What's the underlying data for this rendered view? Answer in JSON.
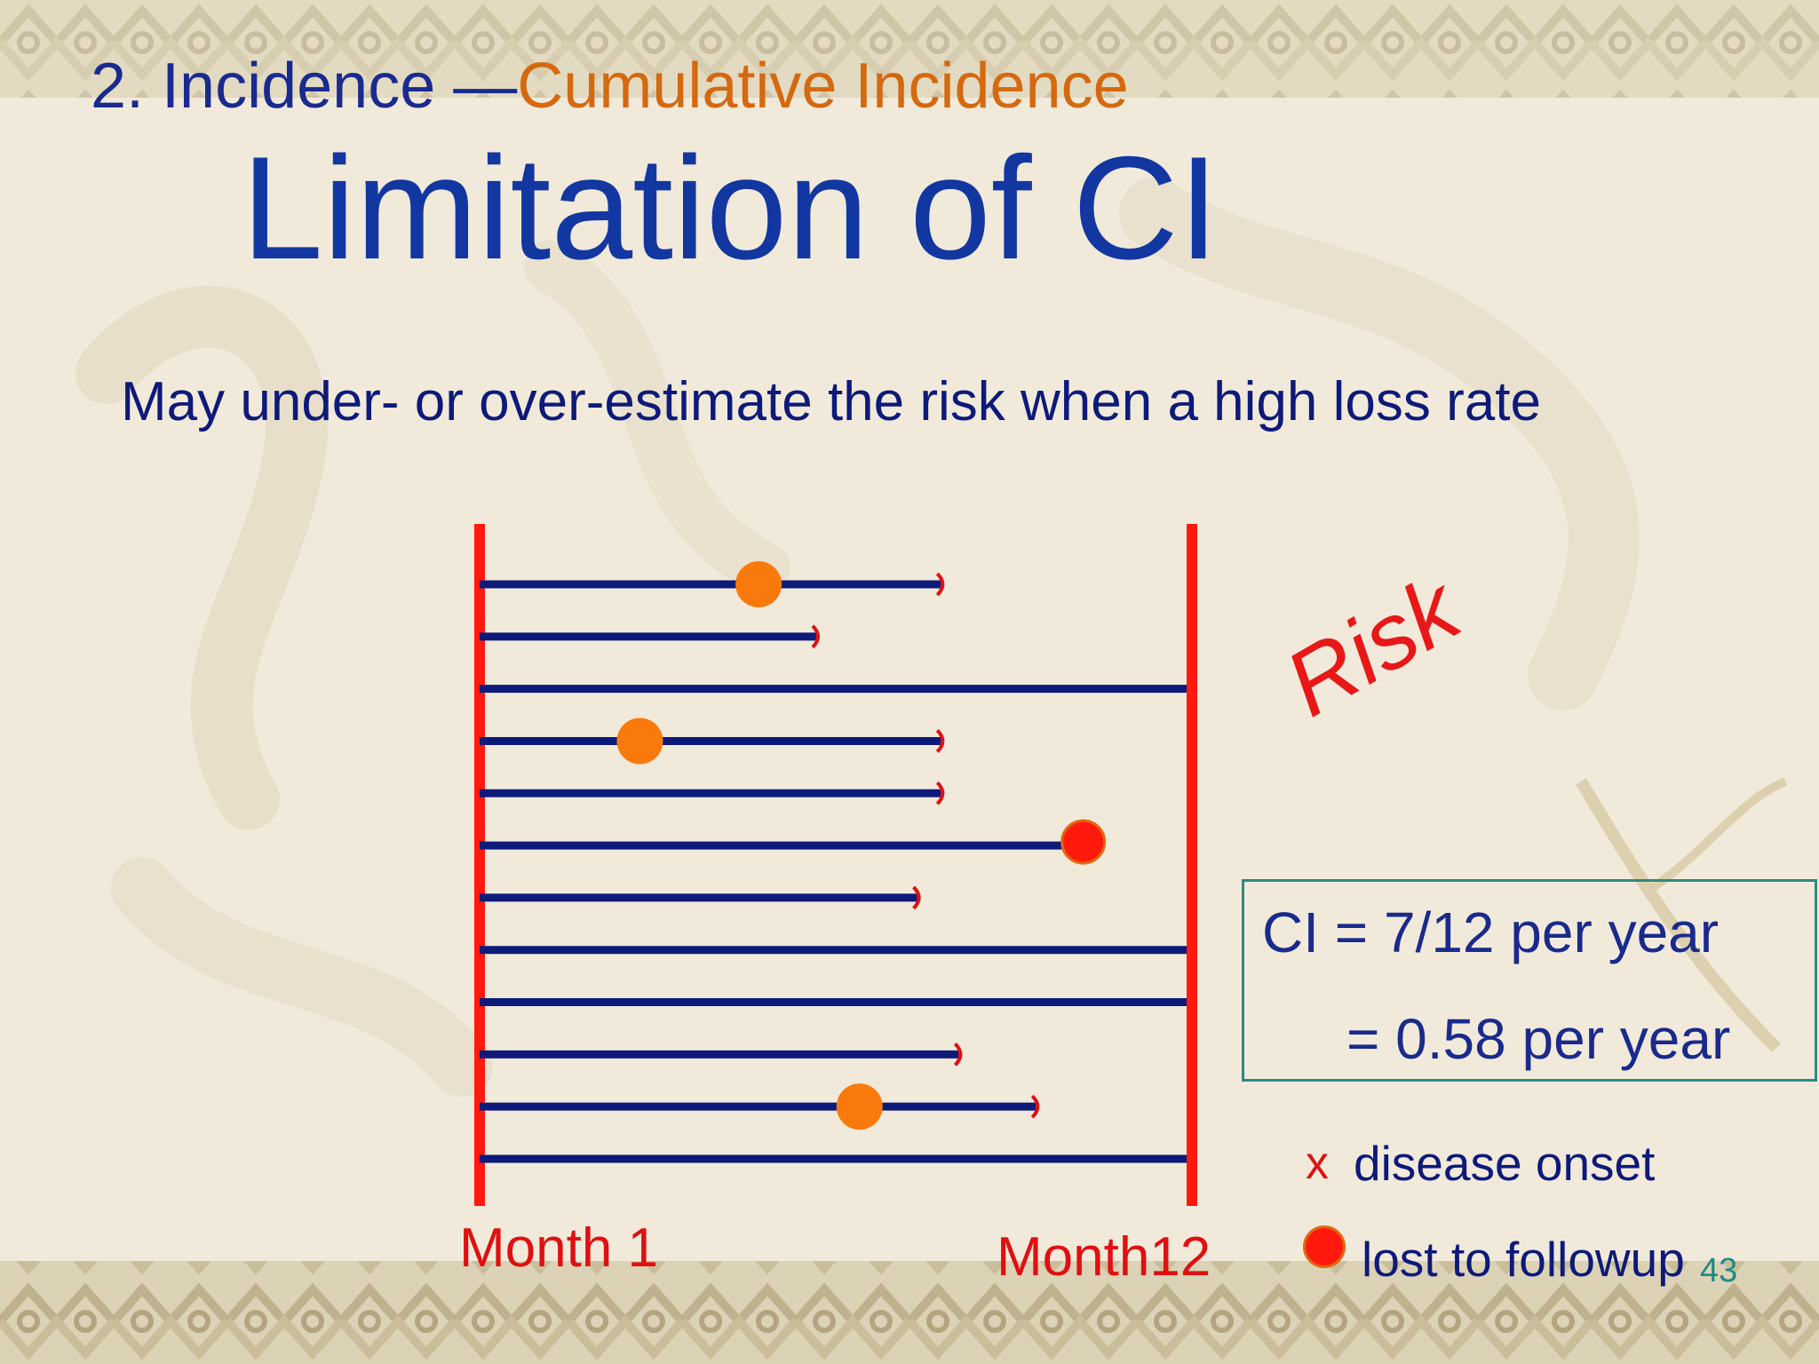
{
  "slide": {
    "pretitle_prefix": "2. Incidence —",
    "pretitle_accent": "Cumulative Incidence",
    "title": "Limitation of CI",
    "subtitle": "May under- or over-estimate the risk when a high loss rate",
    "slide_number": "43"
  },
  "diagram": {
    "start_label": "Month 1",
    "end_label": "Month12",
    "risk_label": "Risk",
    "follow_up_months": 12,
    "subjects": [
      {
        "end_month": 7.8,
        "end": "lost",
        "marker_month": 4.7,
        "marker": "disease"
      },
      {
        "end_month": 5.7,
        "end": "lost",
        "marker_month": null,
        "marker": null
      },
      {
        "end_month": 12,
        "end": "complete",
        "marker_month": null,
        "marker": null
      },
      {
        "end_month": 7.8,
        "end": "lost",
        "marker_month": 2.7,
        "marker": "disease"
      },
      {
        "end_month": 7.8,
        "end": "lost",
        "marker_month": null,
        "marker": null
      },
      {
        "end_month": 9.9,
        "end": "lost",
        "marker_month": 9.9,
        "marker": "lost"
      },
      {
        "end_month": 7.4,
        "end": "lost",
        "marker_month": null,
        "marker": null
      },
      {
        "end_month": 12,
        "end": "complete",
        "marker_month": null,
        "marker": null
      },
      {
        "end_month": 12,
        "end": "complete",
        "marker_month": null,
        "marker": null
      },
      {
        "end_month": 8.1,
        "end": "lost",
        "marker_month": null,
        "marker": null
      },
      {
        "end_month": 9.4,
        "end": "lost",
        "marker_month": 6.4,
        "marker": "disease"
      },
      {
        "end_month": 12,
        "end": "complete",
        "marker_month": null,
        "marker": null
      }
    ]
  },
  "ci_box": {
    "line1": "CI = 7/12 per year",
    "line2": "= 0.58 per year"
  },
  "legend": {
    "x_symbol": "x",
    "disease_label": "disease onset",
    "lost_label": "lost to followup"
  },
  "colors": {
    "title_blue": "#1237a0",
    "accent_orange": "#d4690f",
    "line_navy": "#0d1a7a",
    "axis_red": "#ff1a0d",
    "disease_orange": "#f97a0c",
    "box_teal": "#2e8a82"
  }
}
